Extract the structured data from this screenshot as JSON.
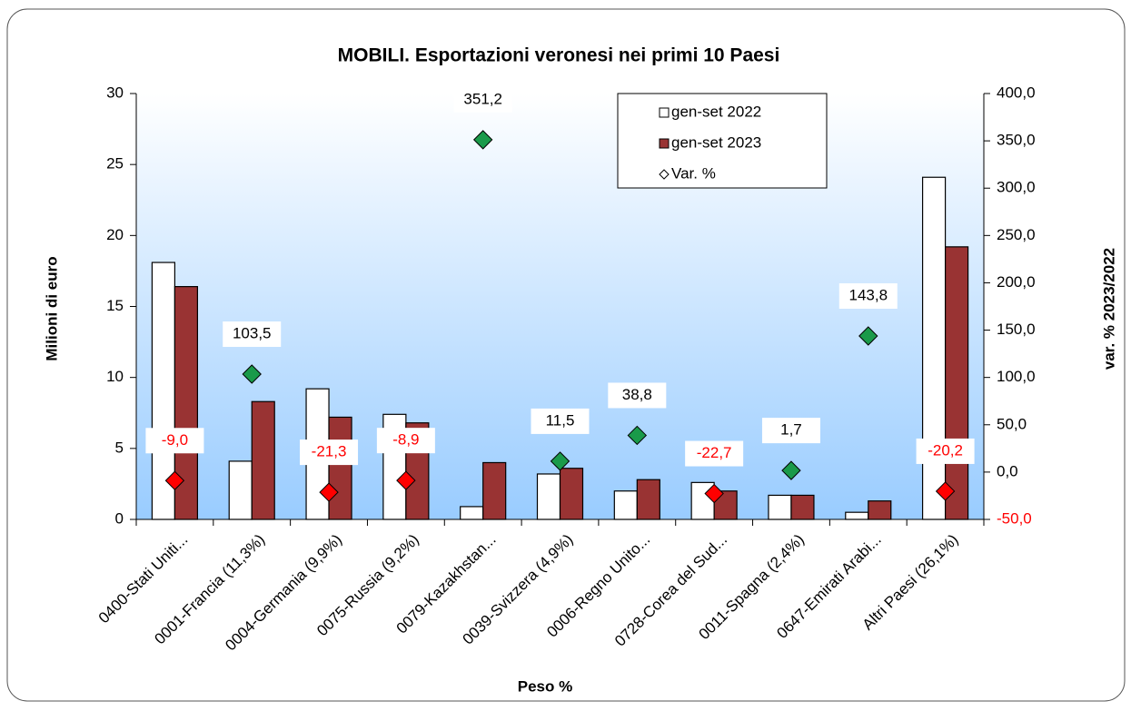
{
  "chart_data": {
    "type": "bar-line-combo",
    "title": "MOBILI. Esportazioni veronesi nei primi 10 Paesi",
    "x_label": "Peso %",
    "y_label": "Milioni di euro",
    "y2_label": "var. % 2023/2022",
    "categories": [
      "0400-Stati Uniti...",
      "0001-Francia  (11,3%)",
      "0004-Germania  (9,9%)",
      "0075-Russia  (9,2%)",
      "0079-Kazakhstan...",
      "0039-Svizzera  (4,9%)",
      "0006-Regno Unito...",
      "0728-Corea del Sud...",
      "0011-Spagna  (2,4%)",
      "0647-Emirati Arabi...",
      "Altri Paesi (26,1%)"
    ],
    "series": [
      {
        "name": "gen-set 2022",
        "color": "#ffffff",
        "values": [
          18.1,
          4.1,
          9.2,
          7.4,
          0.9,
          3.2,
          2.0,
          2.6,
          1.7,
          0.5,
          24.1
        ]
      },
      {
        "name": "gen-set 2023",
        "color": "#993333",
        "values": [
          16.4,
          8.3,
          7.2,
          6.8,
          4.0,
          3.6,
          2.8,
          2.0,
          1.7,
          1.3,
          19.2
        ]
      },
      {
        "name": "Var. %",
        "axis": "y2",
        "positive_color": "#1a9a4a",
        "negative_color": "#ff0000",
        "values": [
          -9.0,
          103.5,
          -21.3,
          -8.9,
          351.2,
          11.5,
          38.8,
          -22.7,
          1.7,
          143.8,
          -20.2
        ],
        "value_labels": [
          "-9,0",
          "103,5",
          "-21,3",
          "-8,9",
          "351,2",
          "11,5",
          "38,8",
          "-22,7",
          "1,7",
          "143,8",
          "-20,2"
        ]
      }
    ],
    "ylim": [
      0,
      30
    ],
    "yticks": [
      0,
      5,
      10,
      15,
      20,
      25,
      30
    ],
    "y2lim": [
      -50,
      400
    ],
    "y2ticks": [
      {
        "value": -50,
        "label": "-50,0"
      },
      {
        "value": 0,
        "label": "0,0"
      },
      {
        "value": 50,
        "label": "50,0"
      },
      {
        "value": 100,
        "label": "100,0"
      },
      {
        "value": 150,
        "label": "150,0"
      },
      {
        "value": 200,
        "label": "200,0"
      },
      {
        "value": 250,
        "label": "250,0"
      },
      {
        "value": 300,
        "label": "300,0"
      },
      {
        "value": 350,
        "label": "350,0"
      },
      {
        "value": 400,
        "label": "400,0"
      }
    ]
  }
}
